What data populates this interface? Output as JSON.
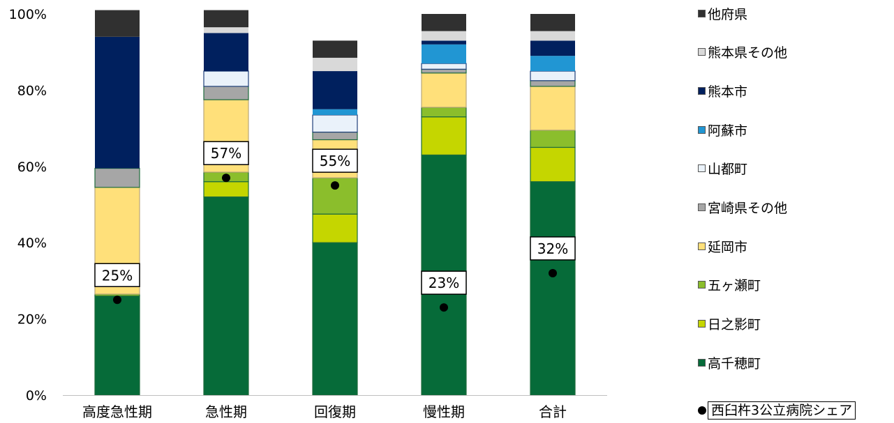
{
  "chart_data": {
    "type": "bar",
    "stacked": true,
    "percent_stacked": true,
    "categories": [
      "高度急性期",
      "急性期",
      "回復期",
      "慢性期",
      "合計"
    ],
    "ylim": [
      0,
      1
    ],
    "y_ticks": [
      "0%",
      "20%",
      "40%",
      "60%",
      "80%",
      "100%"
    ],
    "grid": false,
    "legend_position": "right",
    "series": [
      {
        "name": "高千穂町",
        "color": "#066B39",
        "values": [
          0.26,
          0.52,
          0.4,
          0.63,
          0.56
        ]
      },
      {
        "name": "日之影町",
        "color": "#C5D600",
        "values": [
          0.0,
          0.04,
          0.075,
          0.1,
          0.09
        ]
      },
      {
        "name": "五ヶ瀬町",
        "color": "#8BBE2C",
        "values": [
          0.005,
          0.025,
          0.095,
          0.025,
          0.045
        ]
      },
      {
        "name": "延岡市",
        "color": "#FFE07A",
        "values": [
          0.28,
          0.19,
          0.1,
          0.09,
          0.115
        ]
      },
      {
        "name": "宮崎県その他",
        "color": "#A6A6A6",
        "values": [
          0.05,
          0.035,
          0.02,
          0.01,
          0.015
        ]
      },
      {
        "name": "山都町",
        "color": "#EAF2FA",
        "values": [
          0.0,
          0.04,
          0.045,
          0.015,
          0.025
        ]
      },
      {
        "name": "阿蘇市",
        "color": "#2196D3",
        "values": [
          0.0,
          0.0,
          0.015,
          0.05,
          0.04
        ]
      },
      {
        "name": "熊本市",
        "color": "#00205E",
        "values": [
          0.345,
          0.1,
          0.1,
          0.01,
          0.04
        ]
      },
      {
        "name": "熊本県その他",
        "color": "#D9D9D9",
        "values": [
          0.0,
          0.015,
          0.035,
          0.025,
          0.025
        ]
      },
      {
        "name": "他府県",
        "color": "#303030",
        "values": [
          0.07,
          0.045,
          0.045,
          0.045,
          0.045
        ]
      }
    ],
    "share_series": {
      "name": "西臼杵3公立病院シェア",
      "values": [
        0.25,
        0.57,
        0.55,
        0.23,
        0.32
      ],
      "labels": [
        "25%",
        "57%",
        "55%",
        "23%",
        "32%"
      ]
    }
  }
}
